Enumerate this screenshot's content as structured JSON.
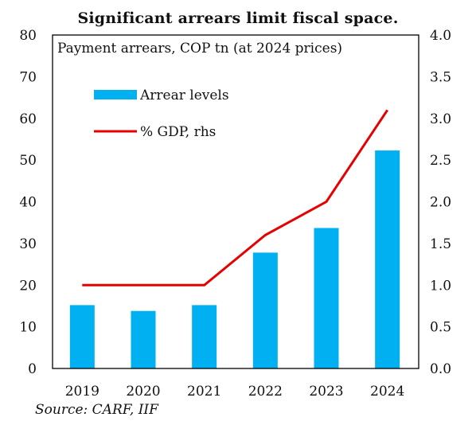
{
  "chart_data": {
    "type": "bar",
    "title": "Significant arrears limit fiscal space.",
    "subtitle": "Payment arrears, COP tn (at 2024 prices)",
    "source": "Source: CARF, IIF",
    "categories": [
      "2019",
      "2020",
      "2021",
      "2022",
      "2023",
      "2024"
    ],
    "series": [
      {
        "name": "Arrear levels",
        "type": "bar",
        "axis": "left",
        "color": "#00b0f0",
        "values": [
          15.2,
          13.8,
          15.2,
          27.8,
          33.7,
          52.3
        ]
      },
      {
        "name": "% GDP, rhs",
        "type": "line",
        "axis": "right",
        "color": "#e60000",
        "values": [
          1.0,
          1.0,
          1.0,
          1.6,
          2.0,
          3.1
        ]
      }
    ],
    "ylim": [
      0,
      80
    ],
    "y_ticks": [
      "0",
      "10",
      "20",
      "30",
      "40",
      "50",
      "60",
      "70",
      "80"
    ],
    "y2lim": [
      0,
      4
    ],
    "y2_ticks": [
      "0.0",
      "0.5",
      "1.0",
      "1.5",
      "2.0",
      "2.5",
      "3.0",
      "3.5",
      "4.0"
    ],
    "grid": false,
    "legend_position": "top-left"
  }
}
